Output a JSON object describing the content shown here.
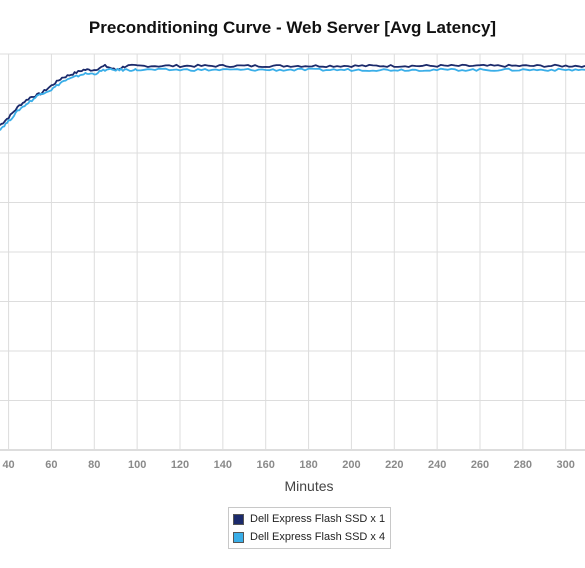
{
  "chart_data": {
    "type": "line",
    "title": "Preconditioning Curve - Web Server [Avg Latency]",
    "xlabel": "Minutes",
    "ylabel": "",
    "x_ticks": [
      40,
      60,
      80,
      100,
      120,
      140,
      160,
      180,
      200,
      220,
      240,
      260,
      280,
      300
    ],
    "xlim": [
      36,
      309
    ],
    "y_gridlines": 8,
    "grid": true,
    "legend_position": "bottom-center",
    "series": [
      {
        "name": "Dell Express Flash SSD x 1",
        "color": "#1b2a6b",
        "x": [
          36,
          40,
          45,
          50,
          55,
          60,
          65,
          70,
          75,
          80,
          85,
          90,
          95,
          100,
          110,
          120,
          130,
          140,
          150,
          160,
          170,
          180,
          190,
          200,
          210,
          220,
          230,
          240,
          250,
          260,
          270,
          280,
          290,
          300,
          309
        ],
        "y": [
          0.82,
          0.84,
          0.87,
          0.89,
          0.9,
          0.92,
          0.94,
          0.95,
          0.96,
          0.96,
          0.97,
          0.96,
          0.97,
          0.97,
          0.97,
          0.97,
          0.97,
          0.97,
          0.97,
          0.97,
          0.97,
          0.97,
          0.97,
          0.97,
          0.97,
          0.97,
          0.97,
          0.97,
          0.97,
          0.97,
          0.97,
          0.97,
          0.97,
          0.97,
          0.97
        ]
      },
      {
        "name": "Dell Express Flash SSD x 4",
        "color": "#3aaee8",
        "x": [
          36,
          40,
          45,
          50,
          55,
          60,
          65,
          70,
          75,
          80,
          85,
          90,
          95,
          100,
          110,
          120,
          130,
          140,
          150,
          160,
          170,
          180,
          190,
          200,
          210,
          220,
          230,
          240,
          250,
          260,
          270,
          280,
          290,
          300,
          309
        ],
        "y": [
          0.81,
          0.83,
          0.86,
          0.88,
          0.9,
          0.91,
          0.93,
          0.94,
          0.95,
          0.95,
          0.96,
          0.96,
          0.96,
          0.96,
          0.96,
          0.96,
          0.96,
          0.96,
          0.96,
          0.96,
          0.96,
          0.96,
          0.96,
          0.96,
          0.96,
          0.96,
          0.96,
          0.96,
          0.96,
          0.96,
          0.96,
          0.96,
          0.96,
          0.96,
          0.96
        ]
      }
    ]
  }
}
